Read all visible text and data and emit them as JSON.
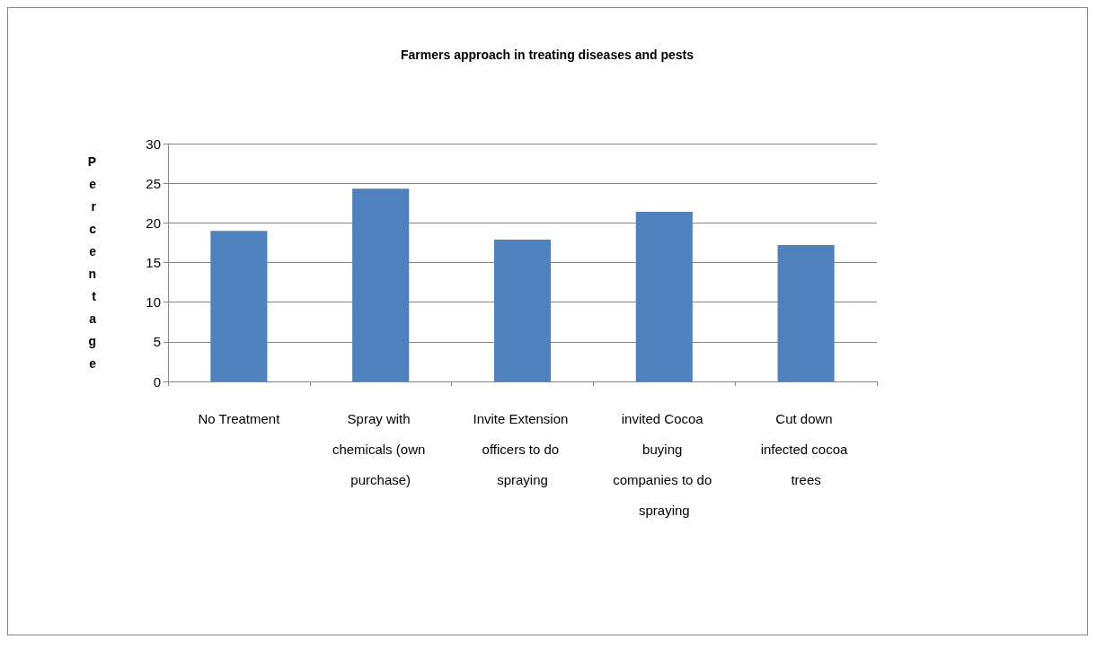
{
  "chart_data": {
    "type": "bar",
    "title": "Farmers approach in treating diseases and pests",
    "ylabel": "Percentage",
    "categories": [
      "No Treatment",
      "Spray with chemicals (own purchase)",
      "Invite Extension officers to do spraying",
      "invited Cocoa buying companies to do spraying",
      "Cut down infected cocoa trees"
    ],
    "values": [
      19.0,
      24.3,
      17.9,
      21.4,
      17.2
    ],
    "color": "#4f81bd",
    "ylim": [
      0,
      30
    ],
    "yticks": [
      0,
      5,
      10,
      15,
      20,
      25,
      30
    ],
    "grid": "y"
  }
}
